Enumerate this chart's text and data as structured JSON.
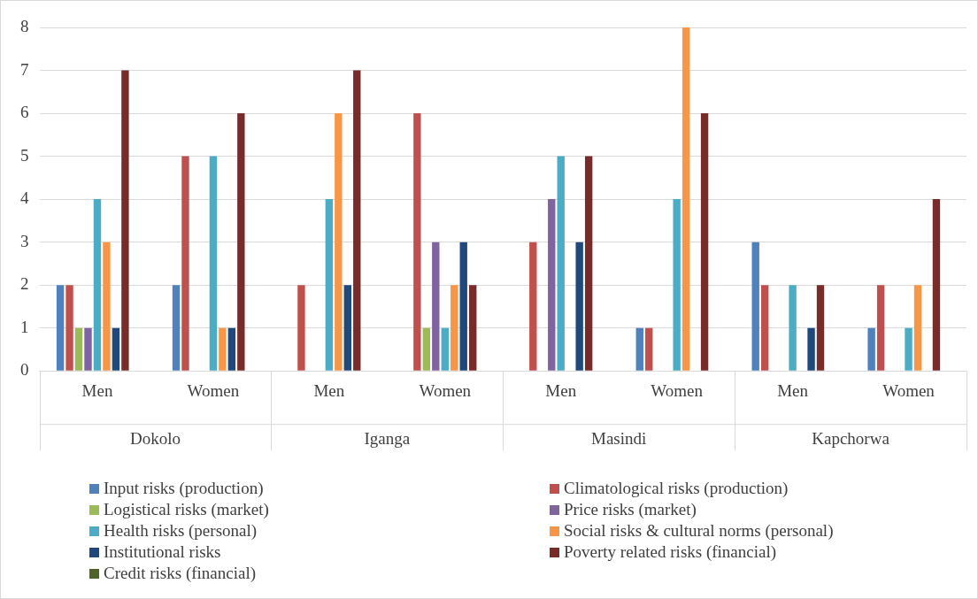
{
  "chart_data": {
    "type": "bar",
    "categories": [
      "Men",
      "Women",
      "Men",
      "Women",
      "Men",
      "Women",
      "Men",
      "Women"
    ],
    "annotations": [
      "Dokolo",
      "Iganga",
      "Masindi",
      "Kapchorwa"
    ],
    "ylim": [
      0,
      8
    ],
    "yticks": [
      0,
      1,
      2,
      3,
      4,
      5,
      6,
      7,
      8
    ],
    "grid": "y",
    "legend": "bottom",
    "series": [
      {
        "name": "Input risks (production)",
        "color": "#4f81bd",
        "values": [
          2,
          2,
          0,
          0,
          0,
          1,
          3,
          1
        ]
      },
      {
        "name": "Climatological risks (production)",
        "color": "#c0504d",
        "values": [
          2,
          5,
          2,
          6,
          3,
          1,
          2,
          2
        ]
      },
      {
        "name": "Logistical risks (market)",
        "color": "#9bbb59",
        "values": [
          1,
          0,
          0,
          1,
          0,
          0,
          0,
          0
        ]
      },
      {
        "name": "Price risks (market)",
        "color": "#8064a2",
        "values": [
          1,
          0,
          0,
          3,
          4,
          0,
          0,
          0
        ]
      },
      {
        "name": "Health risks (personal)",
        "color": "#4bacc6",
        "values": [
          4,
          5,
          4,
          1,
          5,
          4,
          2,
          1
        ]
      },
      {
        "name": "Social risks & cultural norms (personal)",
        "color": "#f79646",
        "values": [
          3,
          1,
          6,
          2,
          0,
          8,
          0,
          2
        ]
      },
      {
        "name": "Institutional risks",
        "color": "#1f497d",
        "values": [
          1,
          1,
          2,
          3,
          3,
          0,
          1,
          0
        ]
      },
      {
        "name": "Poverty related risks (financial)",
        "color": "#772c2a",
        "values": [
          7,
          6,
          7,
          2,
          5,
          6,
          2,
          4
        ]
      },
      {
        "name": "Credit risks (financial)",
        "color": "#4f6228",
        "values": [
          0,
          0,
          0,
          0,
          0,
          0,
          0,
          0
        ]
      }
    ]
  }
}
